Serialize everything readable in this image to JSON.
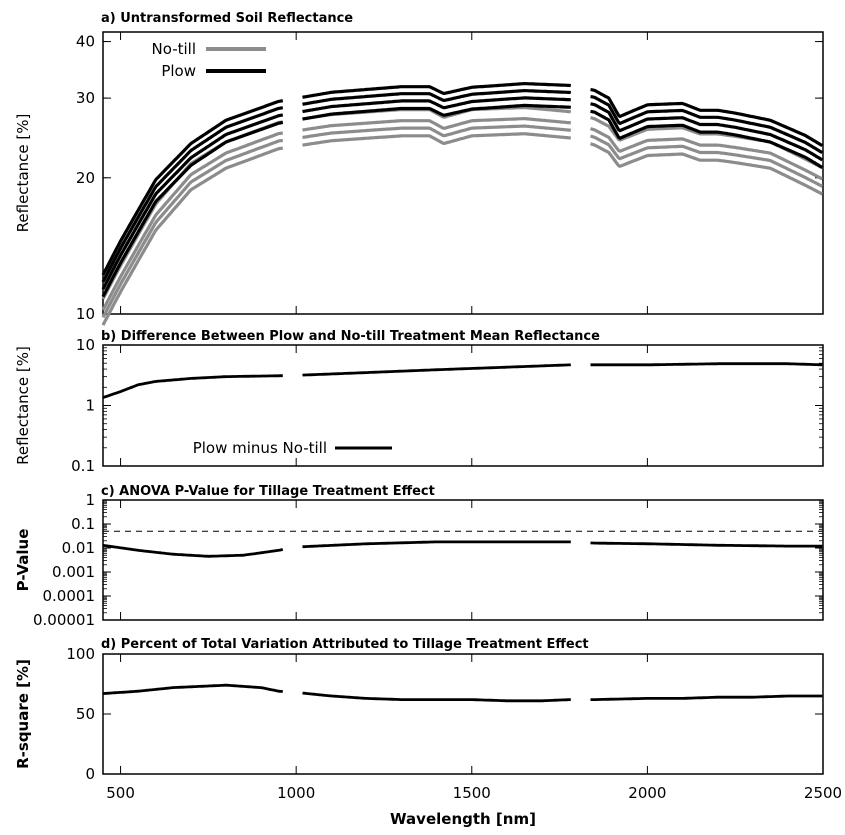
{
  "chart_data": [
    {
      "type": "line",
      "title": "a) Untransformed Soil Reflectance",
      "ylabel": "Reflectance [%]",
      "xlabel": "",
      "yscale": "log",
      "xlim": [
        450,
        2500
      ],
      "ylim": [
        10,
        42
      ],
      "yticks": [
        10,
        20,
        30,
        40
      ],
      "legend_position": "top-left",
      "series": [
        {
          "name": "No-till",
          "color": "#8c8c8c",
          "profile": {
            "x": [
              450,
              500,
              600,
              700,
              800,
              950,
              1100,
              1300,
              1380,
              1420,
              1500,
              1650,
              1780,
              1850,
              1890,
              1920,
              2000,
              2100,
              2150,
              2200,
              2250,
              2350,
              2450,
              2500
            ],
            "y": [
              10.8,
              12.8,
              17.5,
              21.5,
              24.0,
              26.5,
              27.6,
              28.3,
              28.3,
              27.2,
              28.3,
              28.6,
              28.0,
              27.0,
              26.0,
              24.2,
              25.6,
              25.8,
              25.0,
              25.0,
              24.7,
              24.0,
              22.0,
              21.0
            ]
          },
          "offsets": [
            1.0,
            0.945,
            0.91,
            0.875
          ]
        },
        {
          "name": "Plow",
          "color": "#000000",
          "profile": {
            "x": [
              450,
              500,
              600,
              700,
              800,
              950,
              1100,
              1300,
              1380,
              1420,
              1500,
              1650,
              1780,
              1850,
              1890,
              1920,
              2000,
              2100,
              2150,
              2200,
              2250,
              2350,
              2450,
              2500
            ],
            "y": [
              12.2,
              14.5,
              19.8,
              23.8,
              26.8,
              29.5,
              30.9,
              31.8,
              31.8,
              30.7,
              31.7,
              32.3,
              32.0,
              31.2,
              30.0,
              27.3,
              29.0,
              29.2,
              28.2,
              28.2,
              27.8,
              26.8,
              24.8,
              23.5
            ]
          },
          "offsets": [
            1.0,
            0.965,
            0.93,
            0.895
          ]
        }
      ]
    },
    {
      "type": "line",
      "title": "b) Difference Between Plow and No-till Treatment Mean Reflectance",
      "ylabel": "Reflectance [%]",
      "xlabel": "",
      "yscale": "log",
      "xlim": [
        450,
        2500
      ],
      "ylim": [
        0.1,
        10
      ],
      "yticks": [
        0.1,
        1,
        10
      ],
      "legend_position": "bottom-left",
      "series": [
        {
          "name": "Plow minus No-till",
          "color": "#000000",
          "x": [
            450,
            500,
            550,
            600,
            700,
            800,
            950,
            1000,
            1200,
            1400,
            1600,
            1780,
            1850,
            2000,
            2200,
            2400,
            2500
          ],
          "y": [
            1.35,
            1.7,
            2.2,
            2.5,
            2.8,
            3.0,
            3.1,
            3.15,
            3.5,
            3.9,
            4.3,
            4.7,
            4.7,
            4.7,
            4.9,
            4.9,
            4.7
          ]
        }
      ]
    },
    {
      "type": "line",
      "title": "c) ANOVA P-Value for Tillage Treatment Effect",
      "ylabel": "P-Value",
      "xlabel": "",
      "yscale": "log",
      "xlim": [
        450,
        2500
      ],
      "ylim": [
        1e-05,
        1
      ],
      "yticks": [
        1e-05,
        0.0001,
        0.001,
        0.01,
        0.1,
        1
      ],
      "ytick_labels": [
        "0.00001",
        "0.0001",
        "0.001",
        "0.01",
        "0.1",
        "1"
      ],
      "reference_line": 0.05,
      "series": [
        {
          "color": "#000000",
          "x": [
            450,
            550,
            650,
            750,
            850,
            950,
            1000,
            1200,
            1400,
            1600,
            1780,
            1850,
            2000,
            2200,
            2400,
            2500
          ],
          "y": [
            0.013,
            0.008,
            0.0055,
            0.0045,
            0.005,
            0.008,
            0.011,
            0.015,
            0.018,
            0.018,
            0.018,
            0.016,
            0.015,
            0.013,
            0.012,
            0.012
          ]
        }
      ]
    },
    {
      "type": "line",
      "title": "d) Percent of Total Variation Attributed to Tillage Treatment Effect",
      "ylabel": "R-square [%]",
      "xlabel": "Wavelength [nm]",
      "xlim": [
        450,
        2500
      ],
      "ylim": [
        0,
        100
      ],
      "yticks": [
        0,
        50,
        100
      ],
      "xticks": [
        500,
        1000,
        1500,
        2000,
        2500
      ],
      "series": [
        {
          "color": "#000000",
          "x": [
            450,
            550,
            650,
            800,
            900,
            950,
            1000,
            1100,
            1200,
            1300,
            1400,
            1500,
            1600,
            1700,
            1780,
            1850,
            2000,
            2100,
            2200,
            2300,
            2400,
            2500
          ],
          "y": [
            67,
            69,
            72,
            74,
            72,
            69,
            68,
            65,
            63,
            62,
            62,
            62,
            61,
            61,
            62,
            62,
            63,
            63,
            64,
            64,
            65,
            65
          ]
        }
      ]
    }
  ],
  "gaps": [
    [
      965,
      1015
    ],
    [
      1785,
      1835
    ]
  ]
}
